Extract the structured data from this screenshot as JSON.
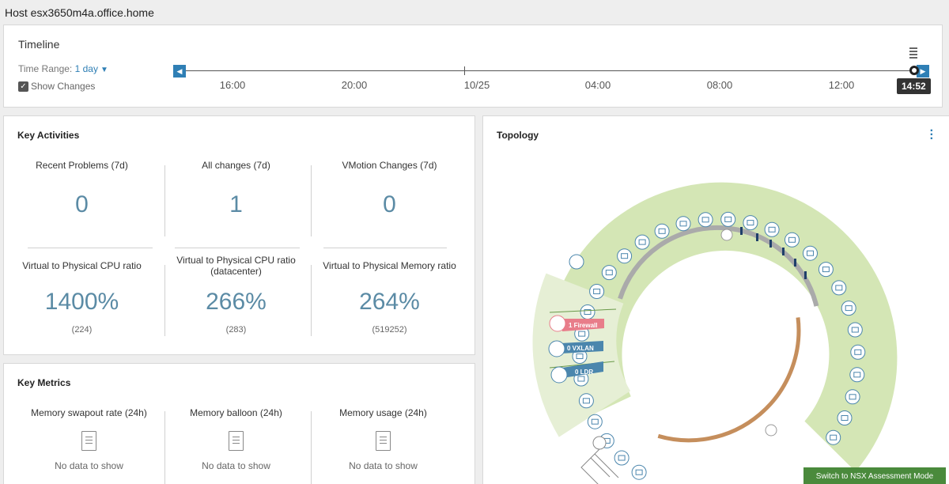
{
  "host_title": "Host esx3650m4a.office.home",
  "timeline": {
    "title": "Timeline",
    "range_label": "Time Range:",
    "range_value": "1 day",
    "show_changes": "Show Changes",
    "labels": [
      "16:00",
      "20:00",
      "10/25",
      "04:00",
      "08:00",
      "12:00"
    ],
    "current_time": "14:52"
  },
  "key_activities": {
    "title": "Key Activities",
    "metrics": [
      {
        "label": "Recent Problems (7d)",
        "value": "0",
        "sub": ""
      },
      {
        "label": "All changes (7d)",
        "value": "1",
        "sub": ""
      },
      {
        "label": "VMotion Changes (7d)",
        "value": "0",
        "sub": ""
      },
      {
        "label": "Virtual to Physical CPU ratio",
        "value": "1400%",
        "sub": "(224)"
      },
      {
        "label": "Virtual to Physical CPU ratio (datacenter)",
        "value": "266%",
        "sub": "(283)"
      },
      {
        "label": "Virtual to Physical Memory ratio",
        "value": "264%",
        "sub": "(519252)"
      }
    ]
  },
  "key_metrics": {
    "title": "Key Metrics",
    "items": [
      {
        "label": "Memory swapout rate (24h)",
        "message": "No data to show"
      },
      {
        "label": "Memory balloon (24h)",
        "message": "No data to show"
      },
      {
        "label": "Memory usage (24h)",
        "message": "No data to show"
      }
    ]
  },
  "topology": {
    "title": "Topology",
    "firewall_label": "1 Firewall",
    "vxlan_label": "0 VXLAN",
    "ldr_label": "0 LDR"
  },
  "nsx_button": "Switch to NSX Assessment Mode",
  "colors": {
    "accent": "#2f7fb5",
    "value": "#5b8ba5",
    "ring_green": "#d4e6b5",
    "firewall": "#e87d8a",
    "vxlan": "#4b86ad",
    "arc_brown": "#c58e5c",
    "arc_gray": "#aaaaaa",
    "nsx_green": "#4a8a3c"
  }
}
